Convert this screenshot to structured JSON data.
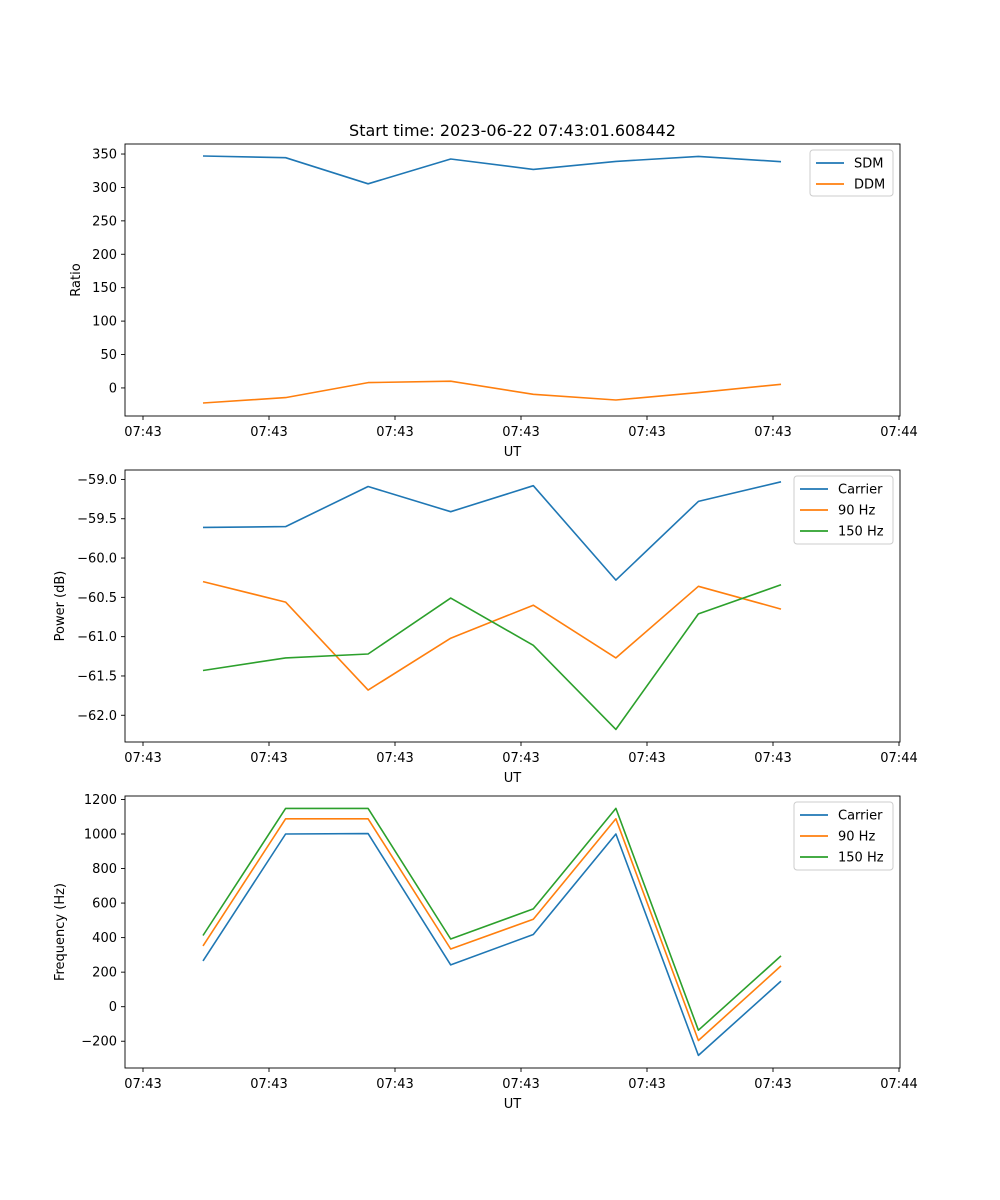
{
  "chart_data": [
    {
      "type": "line",
      "title": "Start time: 2023-06-22 07:43:01.608442",
      "xlabel": "UT",
      "ylabel": "Ratio",
      "x_tick_labels": [
        "07:43",
        "07:43",
        "07:43",
        "07:43",
        "07:43",
        "07:43",
        "07:44"
      ],
      "xlim": [
        -0.23,
        9.19
      ],
      "x": [
        0.5,
        1.5,
        2.5,
        3.5,
        4.5,
        5.5,
        6.5,
        7.5
      ],
      "ylim": [
        -42,
        365
      ],
      "y_ticks": [
        0,
        50,
        100,
        150,
        200,
        250,
        300,
        350
      ],
      "legend": "top-right",
      "grid": false,
      "series": [
        {
          "name": "SDM",
          "color": "#1f77b4",
          "values": [
            347,
            344.5,
            305.5,
            342.5,
            327,
            339,
            346.5,
            338.5
          ]
        },
        {
          "name": "DDM",
          "color": "#ff7f0e",
          "values": [
            -22.5,
            -14.5,
            8,
            10,
            -9.5,
            -18,
            -7,
            5.5
          ]
        }
      ]
    },
    {
      "type": "line",
      "title": "",
      "xlabel": "UT",
      "ylabel": "Power (dB)",
      "x_tick_labels": [
        "07:43",
        "07:43",
        "07:43",
        "07:43",
        "07:43",
        "07:43",
        "07:44"
      ],
      "xlim": [
        -0.23,
        9.19
      ],
      "x": [
        0.5,
        1.5,
        2.5,
        3.5,
        4.5,
        5.5,
        6.5,
        7.5
      ],
      "ylim": [
        -62.34,
        -58.88
      ],
      "y_ticks": [
        -62.0,
        -61.5,
        -61.0,
        -60.5,
        -60.0,
        -59.5,
        -59.0
      ],
      "legend": "top-right",
      "grid": false,
      "series": [
        {
          "name": "Carrier",
          "color": "#1f77b4",
          "values": [
            -59.61,
            -59.6,
            -59.09,
            -59.41,
            -59.08,
            -60.28,
            -59.28,
            -59.03
          ]
        },
        {
          "name": "90 Hz",
          "color": "#ff7f0e",
          "values": [
            -60.3,
            -60.56,
            -61.68,
            -61.02,
            -60.6,
            -61.27,
            -60.36,
            -60.65
          ]
        },
        {
          "name": "150 Hz",
          "color": "#2ca02c",
          "values": [
            -61.43,
            -61.27,
            -61.22,
            -60.51,
            -61.11,
            -62.18,
            -60.71,
            -60.34
          ]
        }
      ]
    },
    {
      "type": "line",
      "title": "",
      "xlabel": "UT",
      "ylabel": "Frequency (Hz)",
      "x_tick_labels": [
        "07:43",
        "07:43",
        "07:43",
        "07:43",
        "07:43",
        "07:43",
        "07:44"
      ],
      "xlim": [
        -0.23,
        9.19
      ],
      "x": [
        0.5,
        1.5,
        2.5,
        3.5,
        4.5,
        5.5,
        6.5,
        7.5
      ],
      "ylim": [
        -355,
        1220
      ],
      "y_ticks": [
        -200,
        0,
        200,
        400,
        600,
        800,
        1000,
        1200
      ],
      "legend": "top-right",
      "grid": false,
      "series": [
        {
          "name": "Carrier",
          "color": "#1f77b4",
          "values": [
            265,
            1000,
            1002,
            242,
            418,
            1000,
            -282,
            148
          ]
        },
        {
          "name": "90 Hz",
          "color": "#ff7f0e",
          "values": [
            352,
            1088,
            1088,
            334,
            506,
            1088,
            -196,
            236
          ]
        },
        {
          "name": "150 Hz",
          "color": "#2ca02c",
          "values": [
            412,
            1148,
            1148,
            392,
            566,
            1148,
            -136,
            294
          ]
        }
      ]
    }
  ]
}
